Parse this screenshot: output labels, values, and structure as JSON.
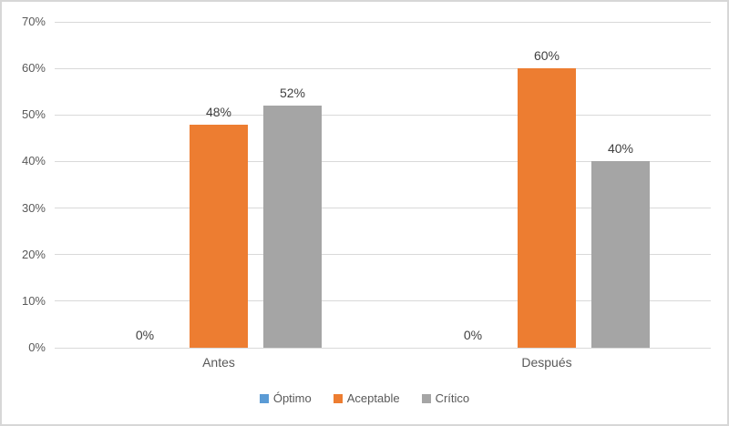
{
  "chart_data": {
    "type": "bar",
    "title": "",
    "categories": [
      "Antes",
      "Después"
    ],
    "series": [
      {
        "name": "Óptimo",
        "color": "#5B9BD5",
        "values": [
          0,
          0
        ],
        "labels": [
          "0%",
          "0%"
        ]
      },
      {
        "name": "Aceptable",
        "color": "#ED7D31",
        "values": [
          48,
          60
        ],
        "labels": [
          "48%",
          "60%"
        ]
      },
      {
        "name": "Crítico",
        "color": "#A5A5A5",
        "values": [
          52,
          40
        ],
        "labels": [
          "52%",
          "40%"
        ]
      }
    ],
    "y_ticks": [
      {
        "value": 0,
        "label": "0%"
      },
      {
        "value": 10,
        "label": "10%"
      },
      {
        "value": 20,
        "label": "20%"
      },
      {
        "value": 30,
        "label": "30%"
      },
      {
        "value": 40,
        "label": "40%"
      },
      {
        "value": 50,
        "label": "50%"
      },
      {
        "value": 60,
        "label": "60%"
      },
      {
        "value": 70,
        "label": "70%"
      }
    ],
    "ylim": [
      0,
      70
    ],
    "grid": true,
    "legend_position": "bottom",
    "gridline_color": "#D9D9D9",
    "border_color": "#D7D7D7",
    "axis_text_color": "#595959",
    "data_label_color": "#404040"
  }
}
